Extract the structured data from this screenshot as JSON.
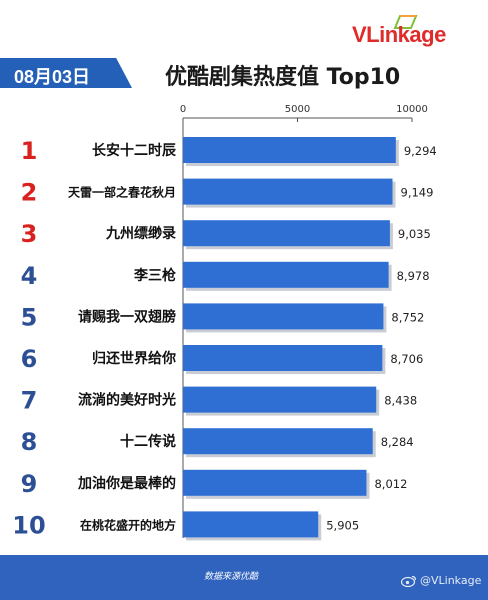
{
  "brand": {
    "logo_text": "VLinkage",
    "accent": "#e02b2b",
    "primary": "#2560b8"
  },
  "header": {
    "date": "08月03日",
    "title": "优酷剧集热度值 Top10"
  },
  "footer": {
    "source": "数据来源优酷",
    "watermark": "@VLinkage",
    "watermark_icon": "weibo-icon"
  },
  "chart_data": {
    "type": "bar",
    "orientation": "horizontal",
    "title": "优酷剧集热度值 Top10",
    "ranks": [
      "1",
      "2",
      "3",
      "4",
      "5",
      "6",
      "7",
      "8",
      "9",
      "10"
    ],
    "categories": [
      "长安十二时辰",
      "天雷一部之春花秋月",
      "九州缥缈录",
      "李三枪",
      "请赐我一双翅膀",
      "归还世界给你",
      "流淌的美好时光",
      "十二传说",
      "加油你是最棒的",
      "在桃花盛开的地方"
    ],
    "values": [
      9294,
      9149,
      9035,
      8978,
      8752,
      8706,
      8438,
      8284,
      8012,
      5905
    ],
    "value_labels": [
      "9,294",
      "9,149",
      "9,035",
      "8,978",
      "8,752",
      "8,706",
      "8,438",
      "8,284",
      "8,012",
      "5,905"
    ],
    "xlim": [
      0,
      10000
    ],
    "x_ticks": [
      0,
      5000,
      10000
    ],
    "x_tick_labels": [
      "0",
      "5000",
      "10000"
    ],
    "rank_colors": {
      "top3": "#d9221f",
      "rest": "#2d4f95"
    },
    "bar_color": "#2f6fd4",
    "grid": false
  }
}
